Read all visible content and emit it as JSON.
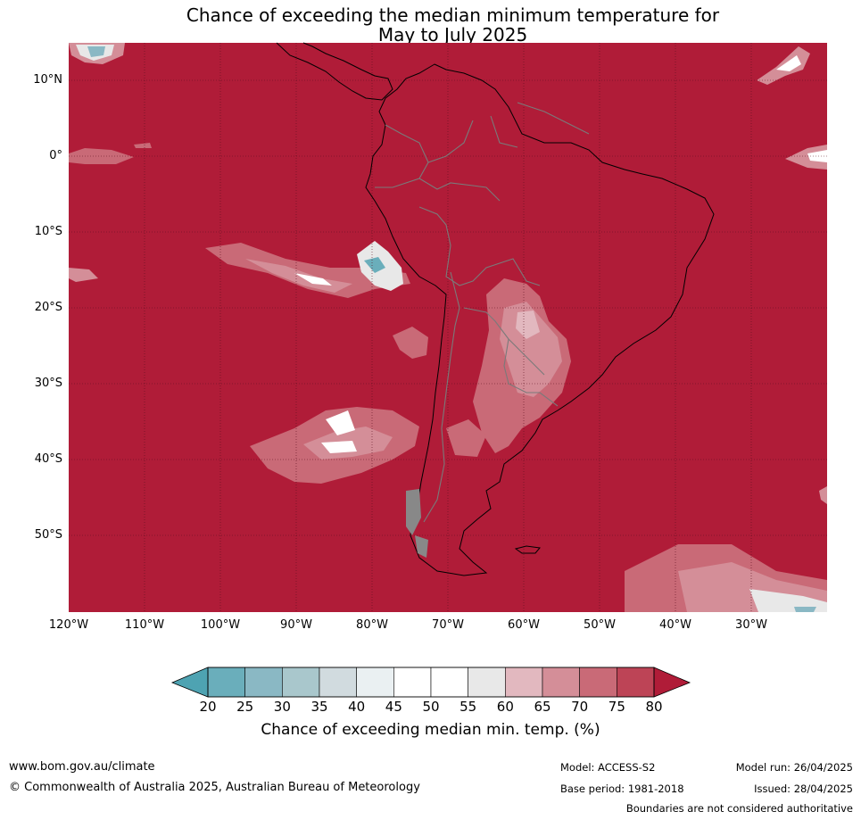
{
  "title": {
    "line1": "Chance of exceeding the median minimum temperature for",
    "line2": "May to July 2025"
  },
  "map": {
    "lat_labels": [
      "10°N",
      "0°",
      "10°S",
      "20°S",
      "30°S",
      "40°S",
      "50°S"
    ],
    "lon_labels": [
      "120°W",
      "110°W",
      "100°W",
      "90°W",
      "80°W",
      "70°W",
      "60°W",
      "50°W",
      "40°W",
      "30°W"
    ],
    "background_color": "#b01c38",
    "gridline_color": "#5a0f1e"
  },
  "colorbar": {
    "ticks": [
      "20",
      "25",
      "30",
      "35",
      "40",
      "45",
      "50",
      "55",
      "60",
      "65",
      "70",
      "75",
      "80"
    ],
    "colors": [
      "#4ea3b2",
      "#6aaebb",
      "#8ab8c4",
      "#a9c7cc",
      "#d1dbdf",
      "#eaf0f2",
      "#ffffff",
      "#ffffff",
      "#e8e8e8",
      "#e2b8bf",
      "#d48e98",
      "#c96a77",
      "#bd4456",
      "#b01c38"
    ],
    "label": "Chance of exceeding median min. temp. (%)"
  },
  "footer": {
    "website": "www.bom.gov.au/climate",
    "copyright": "© Commonwealth of Australia 2025, Australian Bureau of Meteorology",
    "model": "Model: ACCESS-S2",
    "base_period": "Base period: 1981-2018",
    "model_run": "Model run: 26/04/2025",
    "issued": "Issued: 28/04/2025",
    "disclaimer": "Boundaries are not considered authoritative"
  }
}
